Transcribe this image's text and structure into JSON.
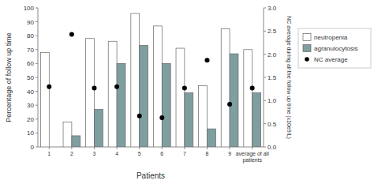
{
  "chart_data": {
    "type": "bar",
    "xlabel": "Patients",
    "ylabel": "Percentage of follow up time",
    "y2label": "NC average during all the follow up time (x10e9/L)",
    "categories": [
      "1",
      "2",
      "3",
      "4",
      "5",
      "6",
      "7",
      "8",
      "9",
      "average of all\npatients"
    ],
    "series": [
      {
        "name": "neutropenia",
        "color": "white",
        "values": [
          68,
          18,
          78,
          76,
          96,
          87,
          71,
          44,
          85,
          70
        ]
      },
      {
        "name": "agranulocytosis",
        "color": "#7f9ea0",
        "values": [
          0,
          8,
          27,
          60,
          73,
          60,
          39,
          13,
          67,
          39
        ]
      },
      {
        "name": "NC average",
        "type": "scatter",
        "axis": "y2",
        "color": "black",
        "marker": "circle",
        "values": [
          1.3,
          2.43,
          1.27,
          1.3,
          0.67,
          0.63,
          1.27,
          1.87,
          0.92,
          1.27
        ]
      }
    ],
    "ylim": [
      0,
      100
    ],
    "yticks": [
      0,
      10,
      20,
      30,
      40,
      50,
      60,
      70,
      80,
      90,
      100
    ],
    "y2lim": [
      0,
      3
    ],
    "y2ticks": [
      {
        "value": 0,
        "label": "0.0"
      },
      0.5,
      {
        "value": 1,
        "label": "1.0"
      },
      1.5,
      {
        "value": 2,
        "label": "2.0"
      },
      2.5,
      {
        "value": 3,
        "label": "3.0"
      }
    ],
    "legend": "right"
  }
}
